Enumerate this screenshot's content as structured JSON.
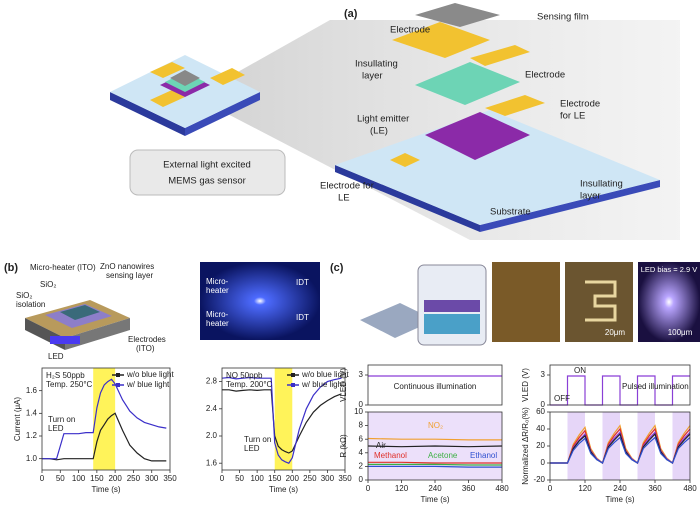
{
  "panels": {
    "a": "(a)",
    "b": "(b)",
    "c": "(c)"
  },
  "diagram_a": {
    "callout": [
      "External light excited",
      "MEMS gas sensor"
    ],
    "callout_bold": "light",
    "labels": [
      "Electrode",
      "Sensing film",
      "Insullating",
      "layer",
      "Electrode",
      "Electrode",
      "for LE",
      "Light emitter",
      "(LE)",
      "Insullating",
      "layer",
      "Electrode for",
      "LE",
      "Substrate"
    ]
  },
  "diagram_b": {
    "labels": [
      "Micro-heater (ITO)",
      "ZnO nanowires",
      "sensing layer",
      "SiO₂",
      "SiO₂",
      "isolation",
      "Electrodes",
      "(ITO)",
      "LED"
    ],
    "photo_labels": [
      "Micro-",
      "heater",
      "IDT",
      "Micro-",
      "heater",
      "IDT"
    ]
  },
  "diagram_c": {
    "scale_1": "20μm",
    "scale_2": "100μm",
    "bias": "LED bias = 2.9 V"
  },
  "chart_data": [
    {
      "type": "line",
      "xlabel": "Time (s)",
      "ylabel": "Current (μA)",
      "annotations": [
        "H₂S 50ppb",
        "Temp. 250°C",
        "Turn on",
        "LED"
      ],
      "xlim": [
        0,
        350
      ],
      "xticks": [
        0,
        50,
        100,
        150,
        200,
        250,
        300,
        350
      ],
      "ylim": [
        0.9,
        1.8
      ],
      "yticks": [
        {
          "value": 1.0,
          "label": "1.0"
        },
        1.2,
        1.4,
        1.6
      ],
      "spans": [
        [
          140,
          200
        ]
      ],
      "span_color": "#fff35a",
      "x": [
        0,
        20,
        40,
        60,
        80,
        100,
        120,
        140,
        150,
        160,
        170,
        180,
        190,
        200,
        220,
        240,
        260,
        280,
        300,
        320,
        340
      ],
      "series": [
        {
          "name": "w/o blue light",
          "color": "#222222",
          "values": [
            1.0,
            1.0,
            0.99,
            1.0,
            1.0,
            1.0,
            1.0,
            1.0,
            1.15,
            1.25,
            1.3,
            1.35,
            1.38,
            1.4,
            1.25,
            1.12,
            1.05,
            1.0,
            0.98,
            0.98,
            0.98
          ]
        },
        {
          "name": "w/ blue light",
          "color": "#3b2fc9",
          "values": [
            1.0,
            1.0,
            1.0,
            1.22,
            1.22,
            1.22,
            1.23,
            1.23,
            1.45,
            1.58,
            1.65,
            1.68,
            1.7,
            1.66,
            1.52,
            1.42,
            1.36,
            1.32,
            1.3,
            1.28,
            1.27
          ]
        }
      ]
    },
    {
      "type": "line",
      "xlabel": "Time (s)",
      "annotations": [
        "NO 50ppb",
        "Temp. 200°C",
        "Turn on",
        "LED"
      ],
      "xlim": [
        0,
        350
      ],
      "xticks": [
        0,
        50,
        100,
        150,
        200,
        250,
        300,
        350
      ],
      "ylim": [
        1.5,
        3.0
      ],
      "yticks": [
        1.6,
        {
          "value": 2.0,
          "label": "2.0"
        },
        2.4,
        2.8
      ],
      "spans": [
        [
          150,
          200
        ]
      ],
      "span_color": "#fff35a",
      "x": [
        0,
        20,
        40,
        60,
        80,
        100,
        120,
        140,
        150,
        160,
        170,
        180,
        190,
        200,
        220,
        240,
        260,
        280,
        300,
        320,
        340
      ],
      "series": [
        {
          "name": "w/o blue light",
          "color": "#222222",
          "values": [
            2.68,
            2.68,
            2.66,
            2.67,
            2.68,
            2.67,
            2.68,
            2.68,
            2.0,
            1.85,
            1.8,
            1.77,
            1.75,
            1.78,
            2.0,
            2.2,
            2.35,
            2.45,
            2.52,
            2.58,
            2.62
          ]
        },
        {
          "name": "w/ blue light",
          "color": "#3b2fc9",
          "values": [
            2.85,
            2.86,
            2.84,
            2.85,
            2.86,
            2.85,
            2.85,
            2.85,
            1.9,
            1.72,
            1.65,
            1.62,
            1.6,
            1.68,
            2.1,
            2.4,
            2.6,
            2.72,
            2.8,
            2.83,
            2.85
          ]
        }
      ]
    },
    {
      "type": "line",
      "ylabel": "VLED (V)",
      "annotations": [
        "Continuous illumination"
      ],
      "xlim": [
        0,
        480
      ],
      "ylim": [
        0,
        4
      ],
      "yticks": [
        0,
        3
      ],
      "x": [
        0,
        480
      ],
      "series": [
        {
          "color": "#8a3fd6",
          "values": [
            2.9,
            2.9
          ]
        }
      ]
    },
    {
      "type": "line",
      "xlabel": "Time (s)",
      "ylabel": "R (kΩ)",
      "xlim": [
        0,
        480
      ],
      "xticks": [
        0,
        120,
        240,
        360,
        480
      ],
      "ylim": [
        0,
        10
      ],
      "yticks": [
        0,
        2,
        4,
        6,
        8,
        10
      ],
      "background": "#ece0fa",
      "x": [
        0,
        120,
        240,
        360,
        480
      ],
      "series": [
        {
          "name": "NO₂",
          "color": "#f0a030",
          "values": [
            6.1,
            6.0,
            6.0,
            5.9,
            5.9
          ]
        },
        {
          "name": "Air",
          "color": "#222222",
          "values": [
            5.0,
            4.9,
            5.0,
            4.9,
            5.0
          ]
        },
        {
          "name": "Methanol",
          "color": "#e0302a",
          "values": [
            2.6,
            2.6,
            2.5,
            2.5,
            2.5
          ]
        },
        {
          "name": "Acetone",
          "color": "#3cb043",
          "values": [
            2.3,
            2.3,
            2.3,
            2.2,
            2.2
          ]
        },
        {
          "name": "Ethanol",
          "color": "#3050d0",
          "values": [
            2.0,
            2.0,
            2.0,
            1.9,
            1.9
          ]
        }
      ]
    },
    {
      "type": "line",
      "ylabel": "VLED (V)",
      "annotations": [
        "ON",
        "OFF",
        "Pulsed illumination"
      ],
      "xlim": [
        0,
        480
      ],
      "ylim": [
        0,
        4
      ],
      "yticks": [
        0,
        3
      ],
      "x": [
        0,
        60,
        60,
        120,
        120,
        180,
        180,
        240,
        240,
        300,
        300,
        360,
        360,
        420,
        420,
        480
      ],
      "series": [
        {
          "color": "#8a3fd6",
          "values": [
            0,
            0,
            2.9,
            2.9,
            0,
            0,
            2.9,
            2.9,
            0,
            0,
            2.9,
            2.9,
            0,
            0,
            2.9,
            2.9
          ]
        }
      ]
    },
    {
      "type": "line",
      "xlabel": "Time (s)",
      "ylabel": "Normalized ΔR/R₀(%)",
      "xlim": [
        0,
        480
      ],
      "xticks": [
        0,
        120,
        240,
        360,
        480
      ],
      "ylim": [
        -20,
        60
      ],
      "yticks": [
        -20,
        0,
        20,
        40,
        60
      ],
      "spans": [
        [
          60,
          120
        ],
        [
          180,
          240
        ],
        [
          300,
          360
        ],
        [
          420,
          480
        ]
      ],
      "span_color": "#e6d6f8",
      "x": [
        0,
        20,
        40,
        60,
        80,
        100,
        120,
        140,
        160,
        180,
        200,
        220,
        240,
        260,
        280,
        300,
        320,
        340,
        360,
        380,
        400,
        420,
        440,
        460,
        480
      ],
      "series": [
        {
          "color": "#f0a030",
          "values": [
            0,
            0,
            0,
            0,
            22,
            33,
            42,
            17,
            6,
            0,
            24,
            35,
            44,
            17,
            6,
            0,
            24,
            35,
            44,
            17,
            6,
            0,
            24,
            35,
            44
          ]
        },
        {
          "color": "#e0302a",
          "values": [
            0,
            0,
            0,
            0,
            20,
            30,
            38,
            15,
            5,
            0,
            22,
            32,
            40,
            15,
            5,
            0,
            22,
            32,
            40,
            15,
            5,
            0,
            22,
            32,
            40
          ]
        },
        {
          "color": "#8a3fd6",
          "values": [
            0,
            0,
            0,
            0,
            18,
            27,
            34,
            14,
            5,
            0,
            20,
            29,
            36,
            14,
            5,
            0,
            20,
            29,
            36,
            14,
            5,
            0,
            20,
            29,
            36
          ]
        },
        {
          "color": "#222222",
          "values": [
            0,
            0,
            0,
            0,
            17,
            26,
            32,
            13,
            4,
            0,
            19,
            27,
            34,
            13,
            4,
            0,
            19,
            27,
            34,
            13,
            4,
            0,
            19,
            27,
            34
          ]
        },
        {
          "color": "#3050d0",
          "values": [
            0,
            0,
            0,
            0,
            15,
            23,
            29,
            11,
            4,
            0,
            17,
            24,
            30,
            11,
            4,
            0,
            17,
            24,
            30,
            11,
            4,
            0,
            17,
            24,
            30
          ]
        }
      ]
    }
  ]
}
